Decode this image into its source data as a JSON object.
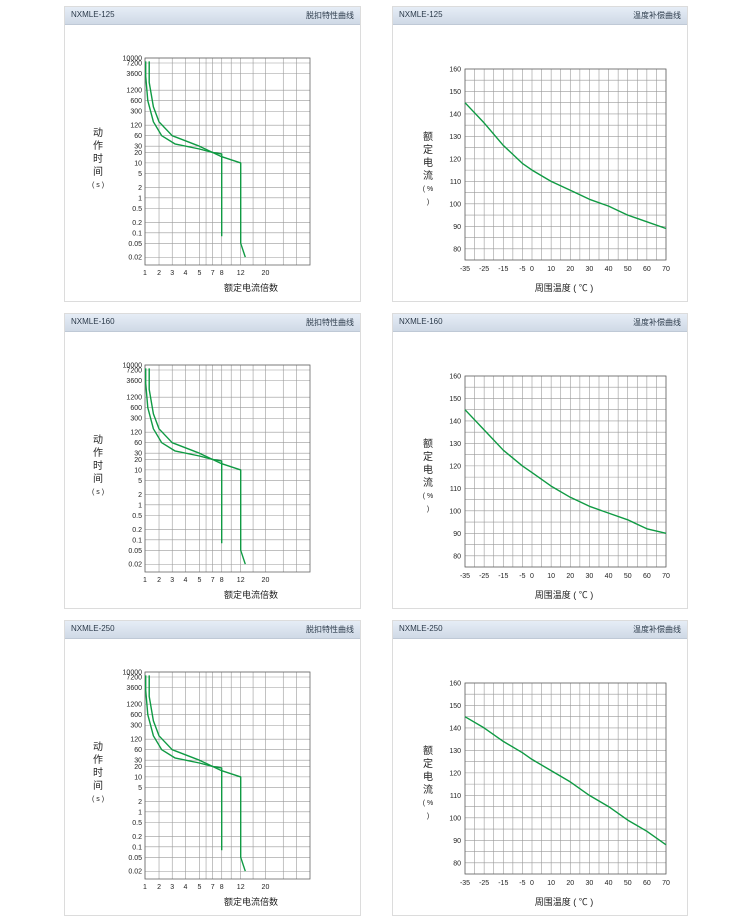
{
  "panels": [
    {
      "model": "NXMLE-125",
      "kind": "脱扣特性曲线"
    },
    {
      "model": "NXMLE-125",
      "kind": "温度补偿曲线"
    },
    {
      "model": "NXMLE-160",
      "kind": "脱扣特性曲线"
    },
    {
      "model": "NXMLE-160",
      "kind": "温度补偿曲线"
    },
    {
      "model": "NXMLE-250",
      "kind": "脱扣特性曲线"
    },
    {
      "model": "NXMLE-250",
      "kind": "温度补偿曲线"
    }
  ],
  "trip_axis": {
    "ylabel": [
      "动",
      "作",
      "时",
      "间"
    ],
    "yunit": "( s )",
    "xlabel": "额定电流倍数",
    "yticks": [
      "10000",
      "7200",
      "3600",
      "1200",
      "600",
      "300",
      "120",
      "60",
      "30",
      "20",
      "10",
      "5",
      "2",
      "1",
      "0.5",
      "0.2",
      "0.1",
      "0.05",
      "0.02"
    ],
    "xticks": [
      "1",
      "2",
      "3",
      "4",
      "5",
      "7",
      "8",
      "12",
      "20"
    ]
  },
  "temp_axis": {
    "ylabel": [
      "额",
      "定",
      "电",
      "流"
    ],
    "yunit": "( % )",
    "xlabel": "周围温度 ( ℃ )",
    "yticks": [
      "160",
      "150",
      "140",
      "130",
      "120",
      "110",
      "100",
      "90",
      "80"
    ],
    "xticks": [
      "-35",
      "-25",
      "-15",
      "-5",
      "0",
      "10",
      "20",
      "30",
      "40",
      "50",
      "60",
      "70"
    ]
  },
  "chart_data": [
    {
      "type": "line",
      "title": "NXMLE-125 脱扣特性曲线",
      "xlabel": "额定电流倍数",
      "ylabel": "动作时间 (s)",
      "yscale": "log",
      "series": [
        {
          "x": [
            1.05,
            1.05,
            1.2,
            1.6,
            2.2,
            3.2,
            5,
            7,
            8,
            8
          ],
          "y": [
            8000,
            3000,
            600,
            150,
            60,
            35,
            25,
            20,
            18,
            0.08
          ]
        },
        {
          "x": [
            1.3,
            1.3,
            1.6,
            2,
            3,
            5,
            8,
            12,
            12,
            13.5
          ],
          "y": [
            8000,
            2000,
            400,
            150,
            60,
            30,
            15,
            10,
            0.05,
            0.02
          ]
        }
      ]
    },
    {
      "type": "line",
      "title": "NXMLE-125 温度补偿曲线",
      "xlabel": "周围温度 (℃)",
      "ylabel": "额定电流 (%)",
      "ylim": [
        75,
        160
      ],
      "series": [
        {
          "x": [
            -35,
            -25,
            -15,
            -5,
            0,
            10,
            20,
            30,
            40,
            50,
            60,
            70
          ],
          "y": [
            145,
            136,
            126,
            118,
            115,
            110,
            106,
            102,
            99,
            95,
            92,
            89
          ]
        }
      ]
    },
    {
      "type": "line",
      "title": "NXMLE-160 脱扣特性曲线",
      "xlabel": "额定电流倍数",
      "ylabel": "动作时间 (s)",
      "yscale": "log",
      "series": [
        {
          "x": [
            1.05,
            1.05,
            1.2,
            1.6,
            2.2,
            3.2,
            5,
            7,
            8,
            8
          ],
          "y": [
            8000,
            3000,
            600,
            150,
            60,
            35,
            25,
            20,
            18,
            0.08
          ]
        },
        {
          "x": [
            1.3,
            1.3,
            1.6,
            2,
            3,
            5,
            8,
            12,
            12,
            13.5
          ],
          "y": [
            8000,
            2000,
            400,
            150,
            60,
            30,
            15,
            10,
            0.05,
            0.02
          ]
        }
      ]
    },
    {
      "type": "line",
      "title": "NXMLE-160 温度补偿曲线",
      "xlabel": "周围温度 (℃)",
      "ylabel": "额定电流 (%)",
      "ylim": [
        75,
        160
      ],
      "series": [
        {
          "x": [
            -35,
            -25,
            -15,
            -5,
            0,
            10,
            20,
            30,
            40,
            50,
            60,
            70
          ],
          "y": [
            145,
            136,
            127,
            120,
            117,
            111,
            106,
            102,
            99,
            96,
            92,
            90
          ]
        }
      ]
    },
    {
      "type": "line",
      "title": "NXMLE-250 脱扣特性曲线",
      "xlabel": "额定电流倍数",
      "ylabel": "动作时间 (s)",
      "yscale": "log",
      "series": [
        {
          "x": [
            1.05,
            1.05,
            1.2,
            1.6,
            2.2,
            3.2,
            5,
            7,
            8,
            8
          ],
          "y": [
            8000,
            3000,
            600,
            150,
            60,
            35,
            25,
            20,
            18,
            0.08
          ]
        },
        {
          "x": [
            1.3,
            1.3,
            1.6,
            2,
            3,
            5,
            8,
            12,
            12,
            13.5
          ],
          "y": [
            8000,
            2000,
            400,
            150,
            60,
            30,
            15,
            10,
            0.05,
            0.02
          ]
        }
      ]
    },
    {
      "type": "line",
      "title": "NXMLE-250 温度补偿曲线",
      "xlabel": "周围温度 (℃)",
      "ylabel": "额定电流 (%)",
      "ylim": [
        75,
        160
      ],
      "series": [
        {
          "x": [
            -35,
            -25,
            -15,
            -5,
            0,
            10,
            20,
            30,
            40,
            50,
            60,
            70
          ],
          "y": [
            145,
            140,
            134,
            129,
            126,
            121,
            116,
            110,
            105,
            99,
            94,
            88
          ]
        }
      ]
    }
  ],
  "colors": {
    "curve": "#0f9a43",
    "grid": "#9a9a9a",
    "header": "#d9e2ee"
  }
}
